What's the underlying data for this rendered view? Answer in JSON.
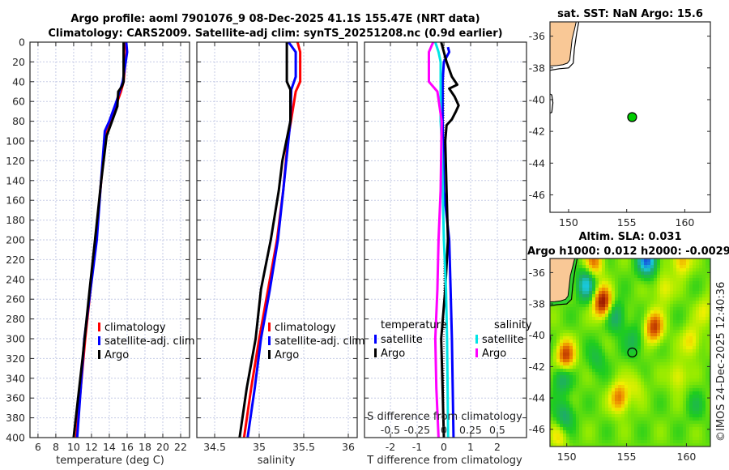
{
  "title": {
    "line1": "Argo profile: aoml 7901076_9 08-Dec-2025 41.1S 155.47E (NRT data)",
    "line2": "Climatology: CARS2009. Satellite-adj clim: synTS_20251208.nc (0.9d earlier)"
  },
  "copyright": "©IMOS 24-Dec-2025 12:40:36",
  "colors": {
    "climatology": "#ff0000",
    "satellite": "#0000ff",
    "argo": "#000000",
    "sal_satellite": "#00e5e5",
    "sal_argo": "#ff00ff",
    "land": "#f9c896",
    "grid": "#c5cbe6"
  },
  "chart_data": [
    {
      "type": "line",
      "name": "temperature-profile",
      "xlabel": "temperature (deg C)",
      "ylabel": "",
      "xlim": [
        5.1,
        23.0
      ],
      "ylim": [
        0,
        400
      ],
      "y_reversed": true,
      "xticks": [
        6,
        8,
        10,
        12,
        14,
        16,
        18,
        20,
        22
      ],
      "yticks": [
        0,
        20,
        40,
        60,
        80,
        100,
        120,
        140,
        160,
        180,
        200,
        220,
        240,
        260,
        280,
        300,
        320,
        340,
        360,
        380,
        400
      ],
      "grid": true,
      "legend": [
        "climatology",
        "satellite-adj. clim",
        "Argo"
      ],
      "series": [
        {
          "name": "climatology",
          "color": "#ff0000",
          "depth": [
            0,
            10,
            40,
            50,
            70,
            90,
            150,
            200,
            250,
            300,
            350,
            400
          ],
          "values": [
            15.8,
            15.9,
            15.6,
            15.3,
            14.5,
            13.6,
            13.0,
            12.5,
            11.9,
            11.3,
            10.8,
            10.3
          ]
        },
        {
          "name": "satellite-adj. clim",
          "color": "#0000ff",
          "depth": [
            0,
            10,
            40,
            60,
            80,
            90,
            150,
            200,
            250,
            300,
            350,
            400
          ],
          "values": [
            15.9,
            16.0,
            15.5,
            14.8,
            14.0,
            13.5,
            13.0,
            12.6,
            11.9,
            11.2,
            10.8,
            10.4
          ]
        },
        {
          "name": "Argo",
          "color": "#000000",
          "depth": [
            0,
            40,
            45,
            50,
            65,
            80,
            95,
            140,
            200,
            250,
            320,
            400
          ],
          "values": [
            15.6,
            15.6,
            15.4,
            15.0,
            14.9,
            14.3,
            13.7,
            13.1,
            12.4,
            11.8,
            11.0,
            10.0
          ]
        }
      ]
    },
    {
      "type": "line",
      "name": "salinity-profile",
      "xlabel": "salinity",
      "xlim": [
        34.3,
        36.1
      ],
      "ylim": [
        0,
        400
      ],
      "y_reversed": true,
      "xticks": [
        34.5,
        35,
        35.5,
        36
      ],
      "xticklabels": [
        "34.5",
        "35",
        "35.5",
        "36"
      ],
      "grid": true,
      "legend": [
        "climatology",
        "satellite-adj. clim",
        "Argo"
      ],
      "series": [
        {
          "name": "climatology",
          "color": "#ff0000",
          "depth": [
            0,
            10,
            40,
            50,
            100,
            150,
            200,
            250,
            300,
            350,
            400
          ],
          "values": [
            35.43,
            35.46,
            35.46,
            35.41,
            35.32,
            35.27,
            35.2,
            35.1,
            35.0,
            34.91,
            34.83
          ]
        },
        {
          "name": "satellite-adj. clim",
          "color": "#0000ff",
          "depth": [
            0,
            10,
            35,
            48,
            80,
            150,
            200,
            250,
            300,
            350,
            400
          ],
          "values": [
            35.33,
            35.41,
            35.41,
            35.36,
            35.35,
            35.27,
            35.21,
            35.12,
            35.02,
            34.95,
            34.87
          ]
        },
        {
          "name": "Argo",
          "color": "#000000",
          "depth": [
            0,
            40,
            48,
            80,
            120,
            150,
            200,
            250,
            300,
            350,
            400
          ],
          "values": [
            35.31,
            35.31,
            35.35,
            35.35,
            35.26,
            35.22,
            35.13,
            35.02,
            34.96,
            34.86,
            34.78
          ]
        }
      ]
    },
    {
      "type": "line",
      "name": "difference-profile",
      "xlabel": "T difference from climatology",
      "xlabel2": "S difference from climatology",
      "xlim": [
        -2.97,
        3.09
      ],
      "xlim2": [
        -0.742,
        0.773
      ],
      "ylim": [
        0,
        400
      ],
      "y_reversed": true,
      "xticks": [
        -2,
        -1,
        0,
        1,
        2
      ],
      "xticks2": [
        -0.5,
        -0.25,
        0,
        0.25,
        0.5
      ],
      "xticklabels2": [
        "-0.5",
        "-0.25",
        "0",
        "0.25",
        "0.5"
      ],
      "grid": true,
      "legend_groups": [
        {
          "title": "temperature",
          "items": [
            "satellite",
            "Argo"
          ]
        },
        {
          "title": "salinity",
          "items": [
            "satellite",
            "Argo"
          ]
        }
      ],
      "series": [
        {
          "name": "temperature satellite",
          "axis": "T",
          "color": "#0000ff",
          "depth": [
            5,
            10,
            20,
            40,
            80,
            150,
            200,
            250,
            300,
            350,
            400
          ],
          "values": [
            0.15,
            0.2,
            0.0,
            -0.05,
            -0.05,
            0.0,
            0.2,
            0.25,
            0.3,
            0.33,
            0.36
          ]
        },
        {
          "name": "temperature Argo",
          "axis": "T",
          "color": "#000000",
          "depth": [
            0,
            20,
            35,
            43,
            47,
            55,
            64,
            70,
            78,
            84,
            100,
            150,
            200,
            250,
            300,
            350,
            400
          ],
          "values": [
            -0.1,
            0.1,
            0.3,
            0.5,
            0.2,
            0.4,
            0.55,
            0.45,
            0.3,
            0.1,
            0.05,
            0.1,
            0.15,
            0.05,
            -0.1,
            -0.05,
            0.0
          ]
        },
        {
          "name": "salinity satellite",
          "axis": "S",
          "color": "#00e5e5",
          "depth": [
            0,
            10,
            20,
            80,
            100,
            150,
            200,
            250,
            300,
            350,
            400
          ],
          "values": [
            -0.08,
            -0.05,
            -0.03,
            -0.03,
            -0.02,
            -0.01,
            0.0,
            0.02,
            0.03,
            0.035,
            0.04
          ]
        },
        {
          "name": "salinity Argo",
          "axis": "S",
          "color": "#ff00ff",
          "depth": [
            0,
            10,
            40,
            50,
            80,
            150,
            200,
            250,
            300,
            350,
            400
          ],
          "values": [
            -0.1,
            -0.14,
            -0.14,
            -0.06,
            -0.02,
            -0.03,
            -0.05,
            -0.06,
            -0.08,
            -0.07,
            -0.05
          ]
        }
      ]
    },
    {
      "type": "map",
      "name": "sst-map",
      "title": "sat. SST: NaN Argo: 15.6",
      "lonlim": [
        148.4,
        162.2
      ],
      "latlim": [
        -47.1,
        -35.1
      ],
      "xticks": [
        150,
        155,
        160
      ],
      "yticks": [
        -36,
        -38,
        -40,
        -42,
        -44,
        -46
      ],
      "argo_position": {
        "lon": 155.47,
        "lat": -41.1,
        "color": "#00cc00"
      }
    },
    {
      "type": "heatmap",
      "name": "sla-map",
      "title": "Altim. SLA: 0.031",
      "subtitle": "Argo h1000: 0.012 h2000: -0.0029",
      "lonlim": [
        148.6,
        162.0
      ],
      "latlim": [
        -47.1,
        -35.1
      ],
      "xticks": [
        150,
        155,
        160
      ],
      "yticks": [
        -36,
        -38,
        -40,
        -42,
        -44,
        -46
      ],
      "argo_position": {
        "lon": 155.47,
        "lat": -41.1
      },
      "base_value": 0.12,
      "features": [
        {
          "lon": 153.0,
          "lat": -37.9,
          "v": 0.95
        },
        {
          "lon": 157.3,
          "lat": -39.5,
          "v": 0.75
        },
        {
          "lon": 149.9,
          "lat": -41.3,
          "v": 0.75
        },
        {
          "lon": 154.4,
          "lat": -44.0,
          "v": 0.6
        },
        {
          "lon": 152.3,
          "lat": -35.3,
          "v": 0.55
        },
        {
          "lon": 159.6,
          "lat": -35.2,
          "v": 0.45
        },
        {
          "lon": 158.1,
          "lat": -37.0,
          "v": 0.3
        },
        {
          "lon": 160.4,
          "lat": -40.4,
          "v": 0.35
        },
        {
          "lon": 159.3,
          "lat": -42.6,
          "v": 0.3
        },
        {
          "lon": 149.4,
          "lat": -46.4,
          "v": 0.3
        },
        {
          "lon": 161.6,
          "lat": -38.5,
          "v": 0.25
        },
        {
          "lon": 155.8,
          "lat": -43.2,
          "v": 0.2
        },
        {
          "lon": 156.7,
          "lat": -35.2,
          "v": -1.0
        },
        {
          "lon": 151.6,
          "lat": -36.8,
          "v": -0.7
        },
        {
          "lon": 154.1,
          "lat": -38.8,
          "v": -0.45
        },
        {
          "lon": 149.6,
          "lat": -42.8,
          "v": -0.4
        },
        {
          "lon": 149.8,
          "lat": -45.2,
          "v": -0.45
        },
        {
          "lon": 155.6,
          "lat": -40.4,
          "v": -0.3
        },
        {
          "lon": 152.5,
          "lat": -41.5,
          "v": -0.25
        },
        {
          "lon": 160.8,
          "lat": -44.5,
          "v": -0.2
        }
      ]
    }
  ],
  "coast": {
    "land": [
      [
        148.0,
        -34.8
      ],
      [
        150.75,
        -34.8
      ],
      [
        150.5,
        -35.6
      ],
      [
        150.3,
        -36.2
      ],
      [
        150.2,
        -36.9
      ],
      [
        150.1,
        -37.5
      ],
      [
        149.9,
        -37.7
      ],
      [
        149.5,
        -37.8
      ],
      [
        149.0,
        -37.85
      ],
      [
        148.0,
        -37.9
      ]
    ],
    "shelf": [
      [
        150.95,
        -34.8
      ],
      [
        150.7,
        -35.8
      ],
      [
        150.5,
        -36.8
      ],
      [
        150.4,
        -37.7
      ],
      [
        150.0,
        -38.0
      ],
      [
        149.2,
        -38.05
      ],
      [
        148.0,
        -38.2
      ]
    ],
    "island": [
      [
        148.0,
        -39.5
      ],
      [
        148.55,
        -39.7
      ],
      [
        148.65,
        -40.2
      ],
      [
        148.55,
        -40.8
      ],
      [
        148.0,
        -41.0
      ]
    ]
  }
}
